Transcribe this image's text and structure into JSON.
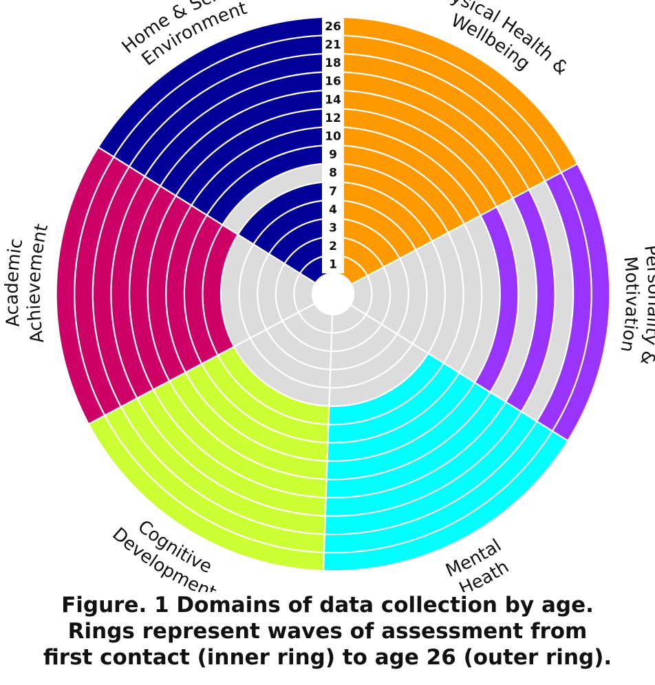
{
  "chart_data": {
    "type": "radial-ring-matrix",
    "title": "Domains of data collection by age",
    "ring_labels": [
      "1",
      "2",
      "3",
      "4",
      "7",
      "8",
      "9",
      "10",
      "12",
      "14",
      "16",
      "18",
      "21",
      "26"
    ],
    "ring_order": "inner to outer",
    "inactive_color": "#dcdcdc",
    "domains": [
      {
        "name": "Physical Health & Wellbeing",
        "label_lines": [
          "Physical Health &",
          "Wellbeing"
        ],
        "color": "#ff9900",
        "collected": [
          true,
          true,
          true,
          true,
          true,
          true,
          true,
          true,
          true,
          true,
          true,
          true,
          true,
          true
        ]
      },
      {
        "name": "Personality & Motivation",
        "label_lines": [
          "Personality &",
          "Motivation"
        ],
        "color": "#9933ff",
        "collected": [
          false,
          false,
          false,
          false,
          false,
          false,
          false,
          false,
          true,
          false,
          true,
          false,
          true,
          true
        ]
      },
      {
        "name": "Mental Heath",
        "label_lines": [
          "Mental",
          "Heath"
        ],
        "color": "#00ffff",
        "collected": [
          false,
          false,
          false,
          false,
          false,
          true,
          true,
          true,
          true,
          true,
          true,
          true,
          true,
          true
        ]
      },
      {
        "name": "Cognitive Development",
        "label_lines": [
          "Cognitive",
          "Development"
        ],
        "color": "#ccff33",
        "collected": [
          false,
          false,
          false,
          false,
          false,
          true,
          true,
          true,
          true,
          true,
          true,
          true,
          true,
          true
        ]
      },
      {
        "name": "Academic Achievement",
        "label_lines": [
          "Academic",
          "Achievement"
        ],
        "color": "#cc0066",
        "collected": [
          false,
          false,
          false,
          false,
          false,
          true,
          true,
          true,
          true,
          true,
          true,
          true,
          true,
          true
        ]
      },
      {
        "name": "Home & School Environment",
        "label_lines": [
          "Home & School",
          "Environment"
        ],
        "color": "#000099",
        "collected": [
          true,
          true,
          true,
          true,
          true,
          false,
          true,
          true,
          true,
          true,
          true,
          true,
          true,
          true
        ]
      }
    ]
  },
  "caption": {
    "line1": "Figure. 1 Domains of data collection by age.",
    "line2": "Rings represent waves of assessment from",
    "line3": "first contact (inner ring) to age 26 (outer ring)."
  }
}
